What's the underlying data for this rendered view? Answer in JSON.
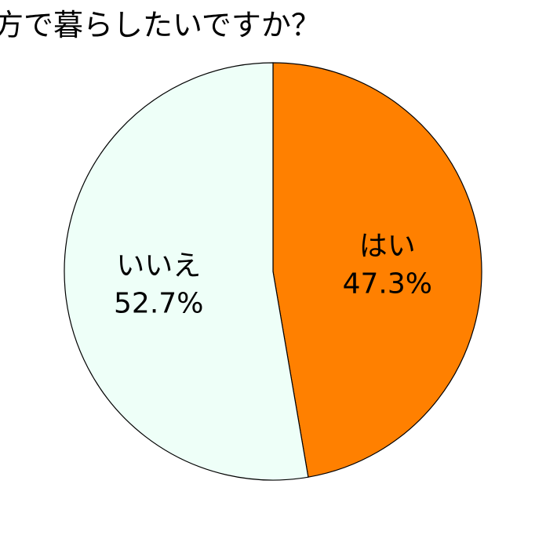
{
  "chart_data": {
    "type": "pie",
    "title": "方で暮らしたいですか？",
    "start": "12 o'clock",
    "direction": "clockwise",
    "slices": [
      {
        "label": "はい",
        "value": 47.3,
        "value_label": "47.3%",
        "color": "#ff8000"
      },
      {
        "label": "いいえ",
        "value": 52.7,
        "value_label": "52.7%",
        "color": "#eefff8"
      }
    ],
    "stroke_color": "#000000"
  }
}
